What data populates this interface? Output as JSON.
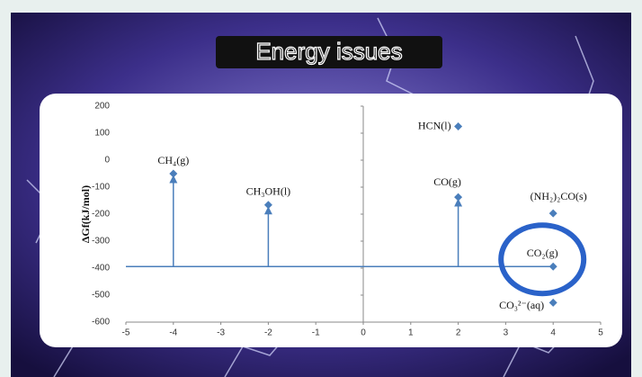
{
  "chart_data": {
    "type": "scatter",
    "title": "Energy issues",
    "y_label": "ΔGf(kJ/mol)",
    "x": [
      -4,
      -2,
      2,
      2,
      4,
      4,
      4
    ],
    "values": [
      -50,
      -166,
      -137,
      125,
      -197,
      -394,
      -528
    ],
    "point_labels": [
      "CH₄(g)",
      "CH₃OH(l)",
      "CO(g)",
      "HCN(l)",
      "(NH₂)₂CO(s)",
      "CO₂(g)",
      "CO₃²⁻(aq)"
    ],
    "color": "#4a7ebb",
    "xlim": [
      -5,
      5
    ],
    "xticks": [
      -5,
      -4,
      -3,
      -2,
      -1,
      0,
      1,
      2,
      3,
      4,
      5
    ],
    "ylim": [
      -600,
      200
    ],
    "yticks": [
      -600,
      -500,
      -400,
      -300,
      -200,
      -100,
      0,
      100,
      200
    ]
  }
}
